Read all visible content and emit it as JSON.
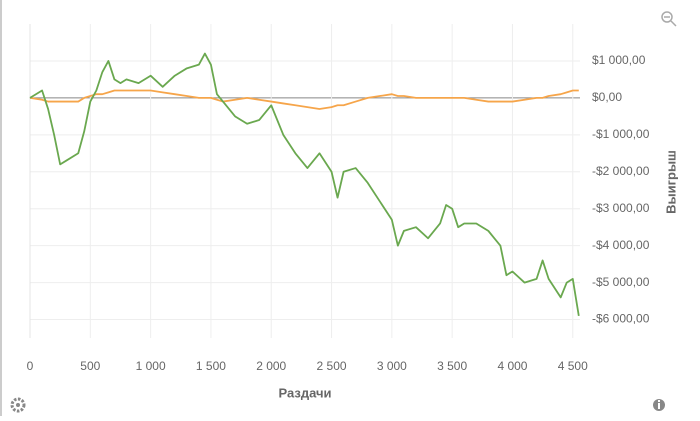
{
  "chart_data": {
    "type": "line",
    "x_label": "Раздачи",
    "y_label": "Выигрыш",
    "xlim": [
      0,
      4560
    ],
    "ylim": [
      -6500,
      2000
    ],
    "xticks": [
      0,
      500,
      {
        "value": 1000,
        "label": "1 000"
      },
      {
        "value": 1500,
        "label": "1 500"
      },
      {
        "value": 2000,
        "label": "2 000"
      },
      {
        "value": 2500,
        "label": "2 500"
      },
      {
        "value": 3000,
        "label": "3 000"
      },
      {
        "value": 3500,
        "label": "3 500"
      },
      {
        "value": 4000,
        "label": "4 000"
      },
      {
        "value": 4500,
        "label": "4 500"
      }
    ],
    "yticks": [
      {
        "value": 1000,
        "label": "$1 000,00"
      },
      {
        "value": 0,
        "label": "$0,00"
      },
      {
        "value": -1000,
        "label": "-$1 000,00"
      },
      {
        "value": -2000,
        "label": "-$2 000,00"
      },
      {
        "value": -3000,
        "label": "-$3 000,00"
      },
      {
        "value": -4000,
        "label": "-$4 000,00"
      },
      {
        "value": -5000,
        "label": "-$5 000,00"
      },
      {
        "value": -6000,
        "label": "-$6 000,00"
      }
    ],
    "grid": true,
    "x": [
      0,
      100,
      150,
      200,
      250,
      300,
      400,
      450,
      500,
      550,
      600,
      650,
      700,
      750,
      800,
      900,
      1000,
      1100,
      1200,
      1300,
      1400,
      1450,
      1500,
      1550,
      1600,
      1700,
      1800,
      1900,
      2000,
      2100,
      2200,
      2300,
      2400,
      2500,
      2550,
      2600,
      2700,
      2800,
      2900,
      3000,
      3050,
      3100,
      3200,
      3300,
      3400,
      3450,
      3500,
      3550,
      3600,
      3700,
      3800,
      3850,
      3900,
      3950,
      4000,
      4100,
      4200,
      4250,
      4300,
      4400,
      4450,
      4500,
      4550
    ],
    "series": [
      {
        "color": "#6aa84f",
        "values": [
          0,
          200,
          -300,
          -1000,
          -1800,
          -1700,
          -1500,
          -900,
          -100,
          200,
          700,
          1000,
          500,
          400,
          500,
          400,
          600,
          300,
          600,
          800,
          900,
          1200,
          900,
          100,
          -100,
          -500,
          -700,
          -600,
          -200,
          -1000,
          -1500,
          -1900,
          -1500,
          -2000,
          -2700,
          -2000,
          -1900,
          -2300,
          -2800,
          -3300,
          -4000,
          -3600,
          -3500,
          -3800,
          -3400,
          -2900,
          -3000,
          -3500,
          -3400,
          -3400,
          -3600,
          -3800,
          -4000,
          -4800,
          -4700,
          -5000,
          -4900,
          -4400,
          -4900,
          -5400,
          -5000,
          -4900,
          -5900
        ]
      },
      {
        "color": "#f6a54a",
        "values": [
          0,
          -50,
          -100,
          -100,
          -100,
          -100,
          -100,
          0,
          50,
          100,
          100,
          150,
          200,
          200,
          200,
          200,
          200,
          150,
          100,
          50,
          0,
          0,
          0,
          -50,
          -100,
          -50,
          0,
          -50,
          -100,
          -150,
          -200,
          -250,
          -300,
          -250,
          -200,
          -200,
          -100,
          0,
          50,
          100,
          50,
          50,
          0,
          0,
          0,
          0,
          0,
          0,
          0,
          -50,
          -100,
          -100,
          -100,
          -100,
          -100,
          -50,
          0,
          0,
          50,
          100,
          150,
          200,
          200
        ]
      }
    ]
  }
}
